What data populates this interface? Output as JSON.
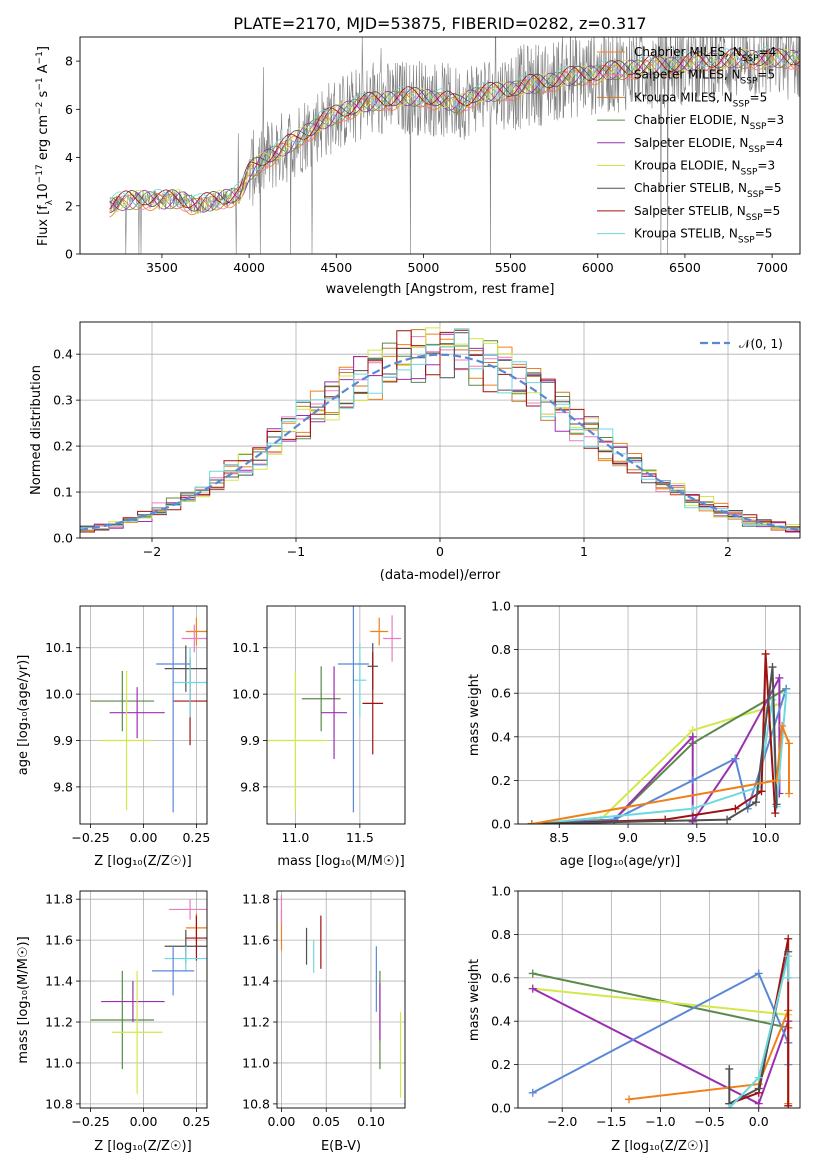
{
  "figure": {
    "title": "PLATE=2170, MJD=53875, FIBERID=0282, z=0.317"
  },
  "colors": {
    "chabrier_miles": "#f08018",
    "salpeter_miles": "#e87fbf",
    "kroupa_miles": "#c97c24",
    "chabrier_elodie": "#5a8a4a",
    "salpeter_elodie": "#9a30b0",
    "kroupa_elodie": "#d2e84a",
    "chabrier_stelib": "#505050",
    "salpeter_stelib": "#a01010",
    "kroupa_stelib": "#6ed8e0",
    "normal": "#5b88d6",
    "data": "#7f7f7f",
    "grid": "#b0b0b0"
  },
  "chart_data": [
    {
      "type": "line",
      "panel": "spectrum",
      "title": "PLATE=2170, MJD=53875, FIBERID=0282, z=0.317",
      "xlabel": "wavelength [Angstrom, rest frame]",
      "ylabel": "Flux [f_λ 10^-17 erg cm^-2 s^-1 A^-1]",
      "xlim": [
        3030,
        7160
      ],
      "ylim": [
        0,
        9
      ],
      "xticks": [
        "3500",
        "4000",
        "4500",
        "5000",
        "5500",
        "6000",
        "6500",
        "7000"
      ],
      "yticks": [
        "0",
        "2",
        "4",
        "6",
        "8"
      ],
      "legend": {
        "position": "top-right",
        "entries": [
          {
            "label": "Chabrier MILES, N",
            "sub": "SSP",
            "value": "=4"
          },
          {
            "label": "Salpeter MILES, N",
            "sub": "SSP",
            "value": "=5"
          },
          {
            "label": "Kroupa MILES, N",
            "sub": "SSP",
            "value": "=5"
          },
          {
            "label": "Chabrier ELODIE, N",
            "sub": "SSP",
            "value": "=3"
          },
          {
            "label": "Salpeter ELODIE, N",
            "sub": "SSP",
            "value": "=4"
          },
          {
            "label": "Kroupa ELODIE, N",
            "sub": "SSP",
            "value": "=3"
          },
          {
            "label": "Chabrier STELIB, N",
            "sub": "SSP",
            "value": "=5"
          },
          {
            "label": "Salpeter STELIB, N",
            "sub": "SSP",
            "value": "=5"
          },
          {
            "label": "Kroupa STELIB, N",
            "sub": "SSP",
            "value": "=5"
          }
        ]
      },
      "continuum": {
        "x": [
          3200,
          3300,
          3400,
          3500,
          3600,
          3700,
          3800,
          3900,
          3950,
          4000,
          4100,
          4200,
          4300,
          4400,
          4500,
          4600,
          4700,
          4800,
          4900,
          5000,
          5100,
          5200,
          5300,
          5400,
          5500,
          5600,
          5700,
          5800,
          5900,
          6000,
          6100,
          6200,
          6300,
          6400,
          6500,
          6600,
          6700,
          6800
        ],
        "y": [
          2.0,
          2.2,
          2.3,
          2.2,
          2.3,
          2.0,
          2.2,
          2.4,
          2.5,
          3.4,
          4.0,
          4.4,
          4.9,
          5.4,
          5.8,
          6.1,
          6.3,
          6.4,
          6.5,
          6.5,
          6.4,
          6.2,
          6.6,
          6.7,
          6.8,
          7.0,
          7.1,
          7.3,
          7.4,
          7.5,
          7.6,
          7.7,
          7.8,
          7.8,
          7.9,
          8.0,
          8.0,
          8.1
        ]
      }
    },
    {
      "type": "bar",
      "panel": "residual-histogram",
      "xlabel": "(data-model)/error",
      "ylabel": "Normed distribution",
      "xlim": [
        -2.5,
        2.5
      ],
      "ylim": [
        0,
        0.47
      ],
      "xticks": [
        "−2",
        "−1",
        "0",
        "1",
        "2"
      ],
      "yticks": [
        "0.0",
        "0.1",
        "0.2",
        "0.3",
        "0.4"
      ],
      "legend": {
        "position": "top-right",
        "label": "𝒩(0, 1)"
      },
      "bin_width": 0.1,
      "x_start": -2.5
    },
    {
      "type": "scatter",
      "panel": "age-vs-metallicity",
      "xlabel": "Z [log₁₀(Z/Z☉)]",
      "ylabel": "age  [log₁₀(age/yr)]",
      "xlim": [
        -0.3,
        0.3
      ],
      "ylim": [
        9.72,
        10.19
      ],
      "xticks": [
        "−0.25",
        "0.00",
        "0.25"
      ],
      "yticks": [
        "9.8",
        "9.9",
        "10.0",
        "10.1"
      ],
      "points": [
        {
          "series": "chabrier_miles",
          "x": 0.25,
          "xerr": 0.05,
          "y": 10.135,
          "yerr": 0.03
        },
        {
          "series": "salpeter_miles",
          "x": 0.24,
          "xerr": 0.06,
          "y": 10.12,
          "yerr": 0.03
        },
        {
          "series": "chabrier_elodie",
          "x": -0.1,
          "xerr": 0.15,
          "y": 9.985,
          "yerr": 0.065
        },
        {
          "series": "salpeter_elodie",
          "x": -0.03,
          "xerr": 0.13,
          "y": 9.96,
          "yerr": 0.055
        },
        {
          "series": "kroupa_elodie",
          "x": -0.08,
          "xerr": 0.12,
          "y": 9.9,
          "yerr": 0.15
        },
        {
          "series": "chabrier_stelib",
          "x": 0.2,
          "xerr": 0.1,
          "y": 10.055,
          "yerr": 0.05
        },
        {
          "series": "salpeter_stelib",
          "x": 0.22,
          "xerr": 0.08,
          "y": 9.985,
          "yerr": 0.095
        },
        {
          "series": "kroupa_stelib",
          "x": 0.22,
          "xerr": 0.08,
          "y": 10.025,
          "yerr": 0.075
        },
        {
          "series": "normal",
          "x": 0.14,
          "xerr": 0.08,
          "y": 10.065,
          "yerr": 0.32
        }
      ]
    },
    {
      "type": "scatter",
      "panel": "age-vs-mass",
      "xlabel": "mass [log₁₀(M/M☉)]",
      "ylabel": "",
      "xlim": [
        10.78,
        11.85
      ],
      "ylim": [
        9.72,
        10.19
      ],
      "xticks": [
        "11.0",
        "11.5"
      ],
      "yticks": [
        "9.8",
        "9.9",
        "10.0",
        "10.1"
      ],
      "points": [
        {
          "series": "chabrier_miles",
          "x": 11.65,
          "xerr": 0.07,
          "y": 10.135,
          "yerr": 0.03
        },
        {
          "series": "salpeter_miles",
          "x": 11.75,
          "xerr": 0.07,
          "y": 10.12,
          "yerr": 0.05
        },
        {
          "series": "chabrier_elodie",
          "x": 11.2,
          "xerr": 0.15,
          "y": 9.99,
          "yerr": 0.07
        },
        {
          "series": "salpeter_elodie",
          "x": 11.3,
          "xerr": 0.1,
          "y": 9.96,
          "yerr": 0.1
        },
        {
          "series": "kroupa_elodie",
          "x": 11.0,
          "xerr": 0.25,
          "y": 9.9,
          "yerr": 0.15
        },
        {
          "series": "chabrier_stelib",
          "x": 11.6,
          "xerr": 0.04,
          "y": 10.06,
          "yerr": 0.05
        },
        {
          "series": "salpeter_stelib",
          "x": 11.6,
          "xerr": 0.08,
          "y": 9.98,
          "yerr": 0.11
        },
        {
          "series": "kroupa_stelib",
          "x": 11.5,
          "xerr": 0.05,
          "y": 10.03,
          "yerr": 0.08
        },
        {
          "series": "normal",
          "x": 11.45,
          "xerr": 0.12,
          "y": 10.065,
          "yerr": 0.32
        }
      ]
    },
    {
      "type": "line",
      "panel": "mass-weight-vs-age",
      "xlabel": "age  [log₁₀(age/yr)]",
      "ylabel": "mass weight",
      "xlim": [
        8.2,
        10.25
      ],
      "ylim": [
        0,
        1
      ],
      "xticks": [
        "8.5",
        "9.0",
        "9.5",
        "10.0"
      ],
      "yticks": [
        "0.0",
        "0.2",
        "0.4",
        "0.6",
        "0.8",
        "1.0"
      ],
      "series": [
        {
          "name": "kroupa_elodie",
          "x": [
            8.3,
            8.8,
            9.47,
            10.1
          ],
          "y": [
            0.0,
            0.02,
            0.43,
            0.55
          ]
        },
        {
          "name": "chabrier_elodie",
          "x": [
            8.3,
            8.9,
            9.47,
            10.15
          ],
          "y": [
            0.0,
            0.02,
            0.37,
            0.62
          ]
        },
        {
          "name": "salpeter_elodie",
          "x": [
            8.3,
            8.9,
            9.47,
            9.47,
            9.78,
            10.1,
            10.1
          ],
          "y": [
            0.0,
            0.02,
            0.4,
            0.01,
            0.3,
            0.67,
            0.14
          ]
        },
        {
          "name": "normal",
          "x": [
            8.3,
            8.9,
            9.47,
            9.78,
            9.87,
            10.15
          ],
          "y": [
            0.0,
            0.02,
            0.2,
            0.3,
            0.07,
            0.62
          ]
        },
        {
          "name": "kroupa_stelib",
          "x": [
            8.3,
            9.47,
            9.95,
            10.05,
            10.08,
            10.15
          ],
          "y": [
            0.0,
            0.07,
            0.17,
            0.57,
            0.08,
            0.6
          ]
        },
        {
          "name": "salpeter_stelib",
          "x": [
            8.3,
            9.27,
            9.78,
            9.97,
            10.0,
            10.07
          ],
          "y": [
            0.0,
            0.02,
            0.07,
            0.15,
            0.78,
            0.05
          ]
        },
        {
          "name": "chabrier_stelib",
          "x": [
            8.3,
            9.72,
            9.93,
            10.05,
            10.08
          ],
          "y": [
            0.0,
            0.02,
            0.1,
            0.72,
            0.09
          ]
        },
        {
          "name": "chabrier_miles",
          "x": [
            8.3,
            10.08,
            10.12,
            10.17,
            10.17
          ],
          "y": [
            0.0,
            0.2,
            0.45,
            0.37,
            0.14
          ]
        }
      ]
    },
    {
      "type": "scatter",
      "panel": "mass-vs-metallicity",
      "xlabel": "Z [log₁₀(Z/Z☉)]",
      "ylabel": "mass [log₁₀(M/M☉)]",
      "xlim": [
        -0.3,
        0.3
      ],
      "ylim": [
        10.78,
        11.84
      ],
      "xticks": [
        "−0.25",
        "0.00",
        "0.25"
      ],
      "yticks": [
        "10.8",
        "11.0",
        "11.2",
        "11.4",
        "11.6",
        "11.8"
      ],
      "points": [
        {
          "series": "chabrier_miles",
          "x": 0.25,
          "xerr": 0.05,
          "y": 11.66,
          "yerr": 0.07
        },
        {
          "series": "salpeter_miles",
          "x": 0.22,
          "xerr": 0.1,
          "y": 11.75,
          "yerr": 0.05
        },
        {
          "series": "chabrier_elodie",
          "x": -0.1,
          "xerr": 0.15,
          "y": 11.21,
          "yerr": 0.24
        },
        {
          "series": "salpeter_elodie",
          "x": -0.05,
          "xerr": 0.15,
          "y": 11.3,
          "yerr": 0.1
        },
        {
          "series": "kroupa_elodie",
          "x": -0.03,
          "xerr": 0.12,
          "y": 11.15,
          "yerr": 0.3
        },
        {
          "series": "chabrier_stelib",
          "x": 0.2,
          "xerr": 0.1,
          "y": 11.57,
          "yerr": 0.08
        },
        {
          "series": "salpeter_stelib",
          "x": 0.25,
          "xerr": 0.05,
          "y": 11.61,
          "yerr": 0.11
        },
        {
          "series": "kroupa_stelib",
          "x": 0.2,
          "xerr": 0.1,
          "y": 11.51,
          "yerr": 0.06
        },
        {
          "series": "normal",
          "x": 0.14,
          "xerr": 0.1,
          "y": 11.45,
          "yerr": 0.12
        }
      ]
    },
    {
      "type": "scatter",
      "panel": "mass-vs-extinction",
      "xlabel": "E(B-V)",
      "ylabel": "",
      "xlim": [
        -0.005,
        0.138
      ],
      "ylim": [
        10.78,
        11.84
      ],
      "xticks": [
        "0.00",
        "0.05",
        "0.10"
      ],
      "yticks": [
        "10.8",
        "11.0",
        "11.2",
        "11.4",
        "11.6",
        "11.8"
      ],
      "points": [
        {
          "series": "chabrier_miles",
          "x": 0.0,
          "y": 11.65,
          "yerr": 0.1
        },
        {
          "series": "salpeter_miles",
          "x": 0.0,
          "y": 11.75,
          "yerr": 0.07
        },
        {
          "series": "chabrier_stelib",
          "x": 0.028,
          "y": 11.57,
          "yerr": 0.09
        },
        {
          "series": "kroupa_stelib",
          "x": 0.036,
          "y": 11.52,
          "yerr": 0.08
        },
        {
          "series": "salpeter_stelib",
          "x": 0.044,
          "y": 11.59,
          "yerr": 0.13
        },
        {
          "series": "normal",
          "x": 0.106,
          "y": 11.41,
          "yerr": 0.16
        },
        {
          "series": "chabrier_elodie",
          "x": 0.11,
          "y": 11.21,
          "yerr": 0.24
        },
        {
          "series": "salpeter_elodie",
          "x": 0.11,
          "y": 11.25,
          "yerr": 0.14
        },
        {
          "series": "kroupa_elodie",
          "x": 0.133,
          "y": 11.04,
          "yerr": 0.21
        }
      ]
    },
    {
      "type": "line",
      "panel": "mass-weight-vs-metallicity",
      "xlabel": "Z [log₁₀(Z/Z☉)]",
      "ylabel": "mass weight",
      "xlim": [
        -2.45,
        0.42
      ],
      "ylim": [
        0,
        1
      ],
      "xticks": [
        "−2.0",
        "−1.5",
        "−1.0",
        "−0.5",
        "0.0"
      ],
      "yticks": [
        "0.0",
        "0.2",
        "0.4",
        "0.6",
        "0.8",
        "1.0"
      ],
      "series": [
        {
          "name": "chabrier_elodie",
          "x": [
            -2.3,
            0.3
          ],
          "y": [
            0.62,
            0.37
          ]
        },
        {
          "name": "kroupa_elodie",
          "x": [
            -2.3,
            0.3
          ],
          "y": [
            0.55,
            0.43
          ]
        },
        {
          "name": "salpeter_elodie",
          "x": [
            -2.3,
            0.0,
            0.3,
            0.3
          ],
          "y": [
            0.55,
            0.02,
            0.4,
            0.3
          ]
        },
        {
          "name": "normal",
          "x": [
            -2.3,
            0.0,
            0.3,
            0.3
          ],
          "y": [
            0.07,
            0.62,
            0.3,
            0.2
          ]
        },
        {
          "name": "chabrier_miles",
          "x": [
            -1.32,
            0.0,
            0.3,
            0.3,
            0.3
          ],
          "y": [
            0.04,
            0.11,
            0.45,
            0.37,
            0.02
          ]
        },
        {
          "name": "salpeter_stelib",
          "x": [
            -0.3,
            0.0,
            0.3,
            0.3
          ],
          "y": [
            0.02,
            0.07,
            0.78,
            0.01
          ]
        },
        {
          "name": "chabrier_stelib",
          "x": [
            -0.3,
            -0.3,
            0.0,
            0.3
          ],
          "y": [
            0.18,
            0.02,
            0.09,
            0.72
          ]
        },
        {
          "name": "kroupa_stelib",
          "x": [
            -0.3,
            0.0,
            0.3,
            0.3
          ],
          "y": [
            0.0,
            0.14,
            0.7,
            0.6
          ]
        }
      ]
    }
  ]
}
